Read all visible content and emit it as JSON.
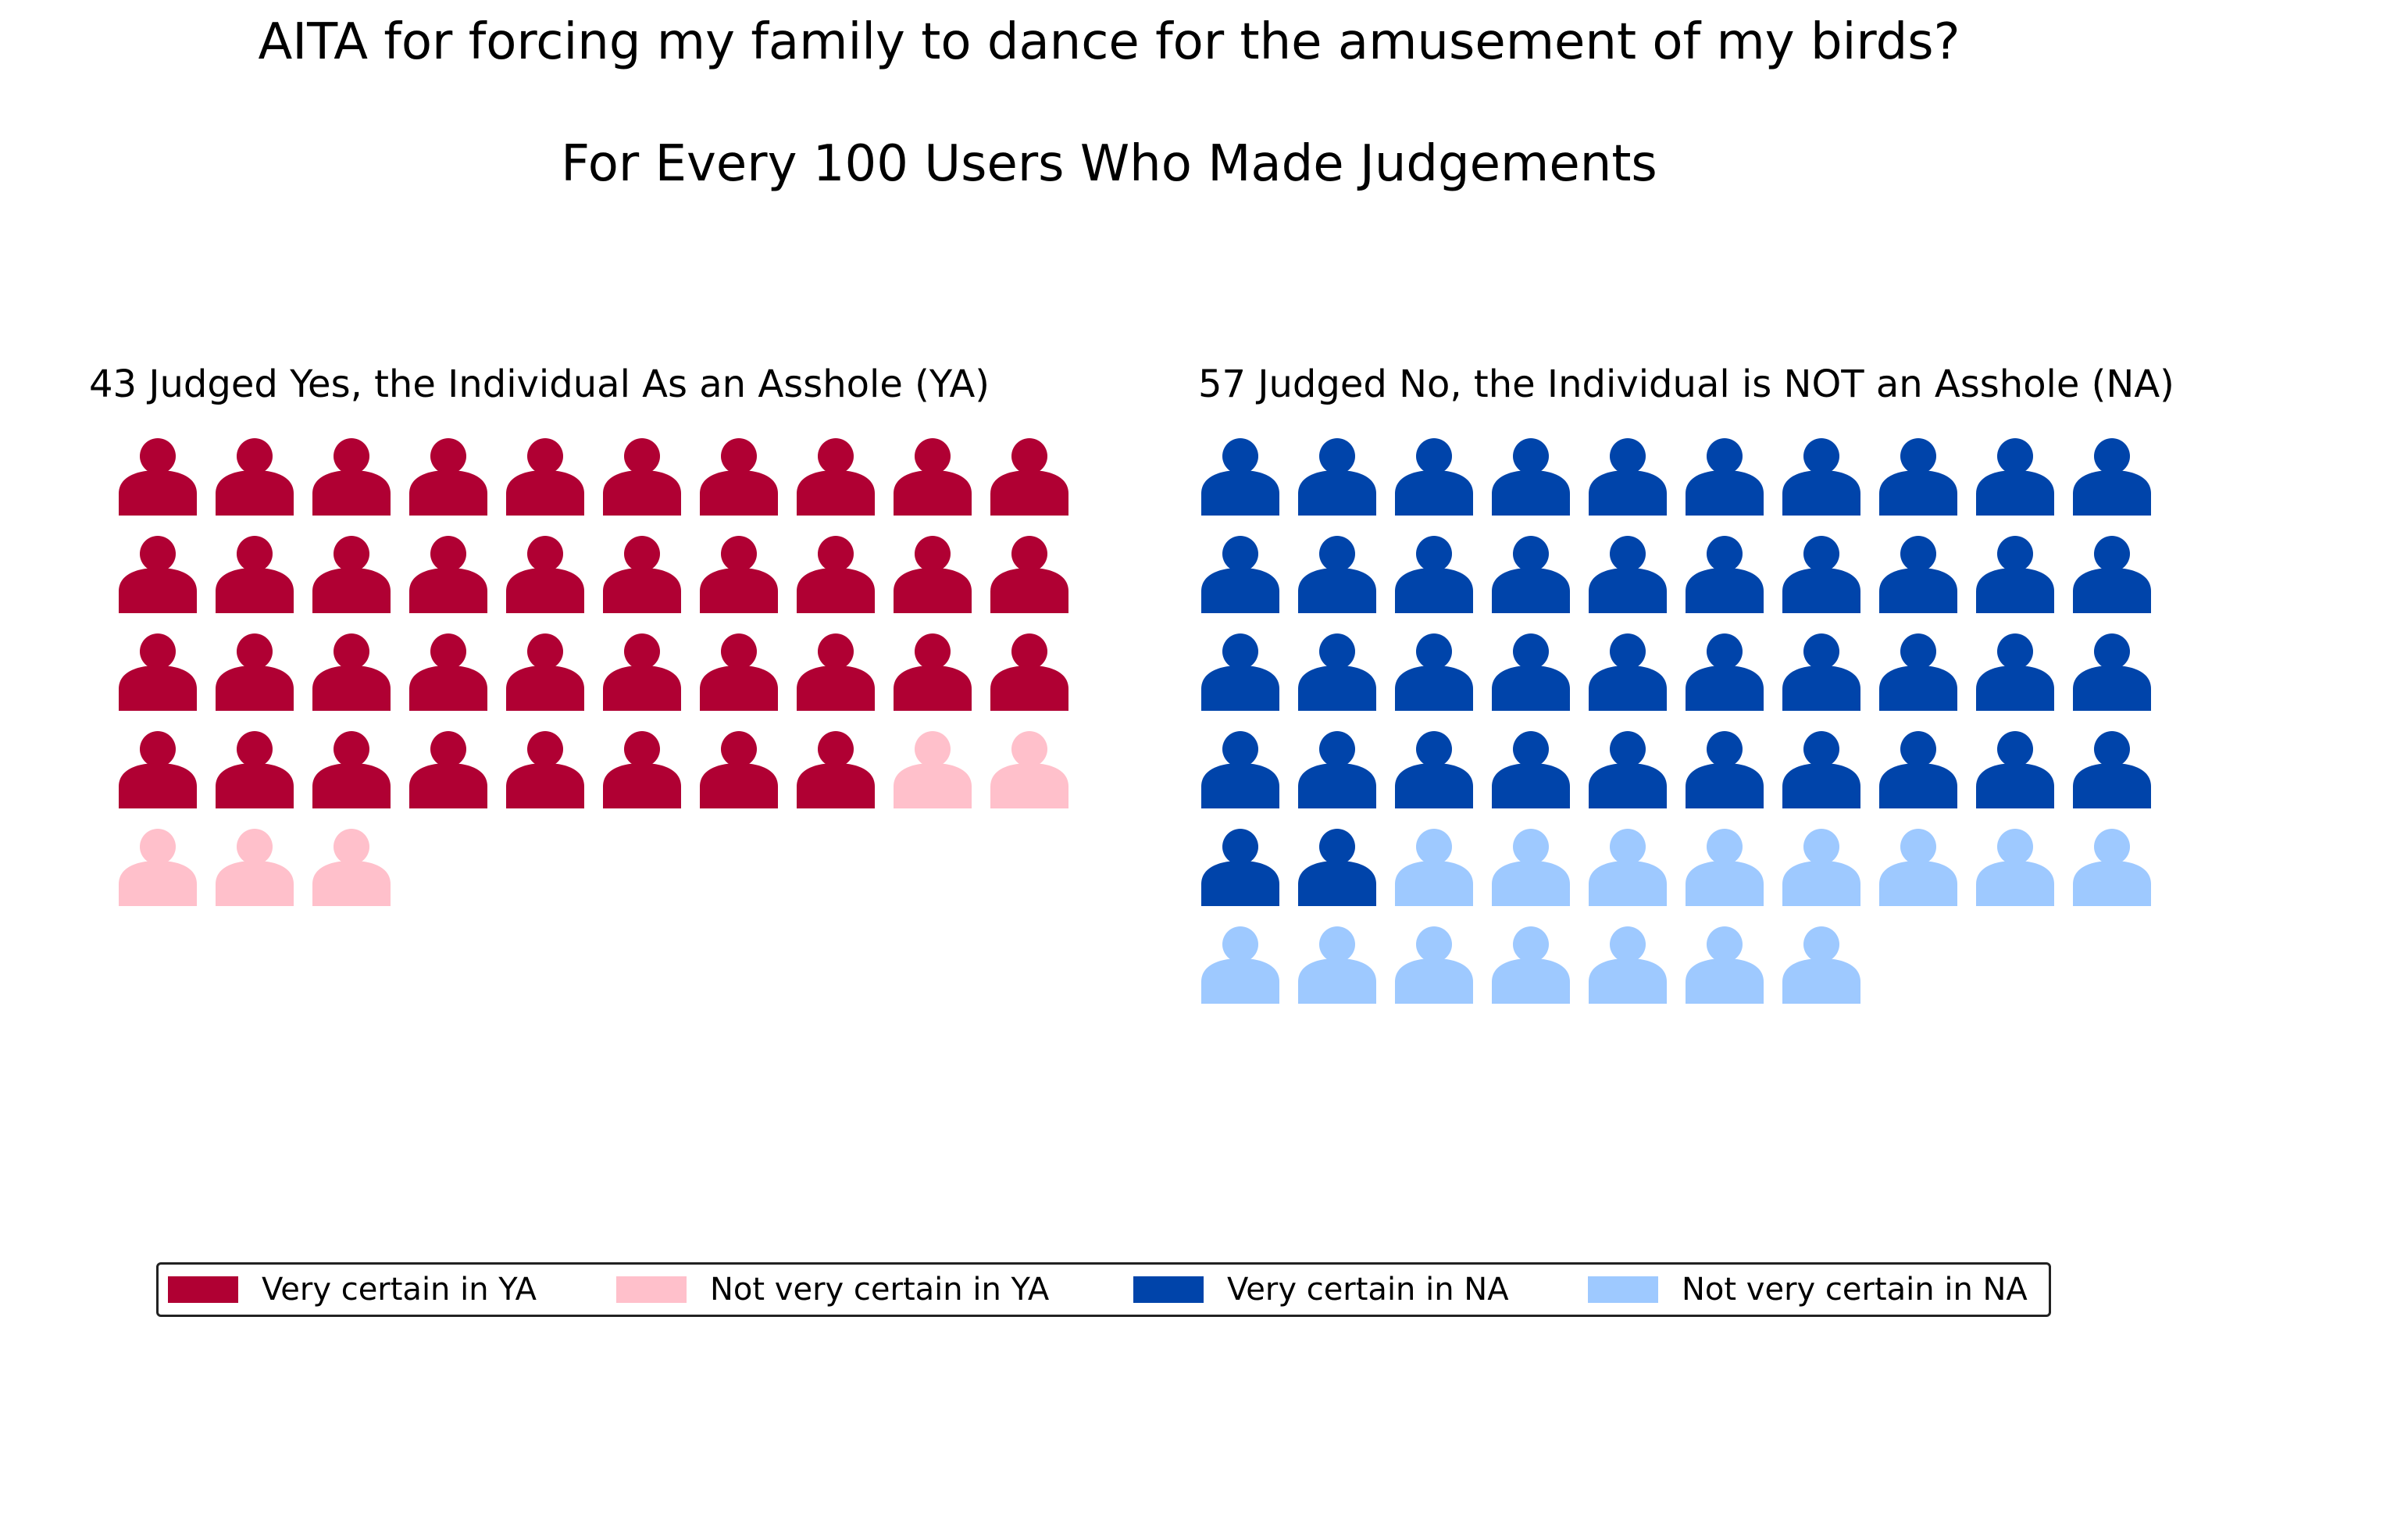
{
  "chart_data": {
    "type": "pictograph",
    "title": "AITA for forcing my family to dance for the amusement of my birds?",
    "subtitle": "For Every 100 Users Who Made Judgements",
    "icon": "person-icon",
    "per_row": 10,
    "panels": [
      {
        "id": "ya",
        "title": "43 Judged Yes, the Individual As an Asshole (YA)",
        "total": 43,
        "segments": [
          {
            "name": "Very certain in YA",
            "count": 38,
            "color": "#b00033"
          },
          {
            "name": "Not very certain in YA",
            "count": 5,
            "color": "#ffc0cb"
          }
        ]
      },
      {
        "id": "na",
        "title": "57 Judged No, the Individual is NOT an Asshole (NA)",
        "total": 57,
        "segments": [
          {
            "name": "Very certain in NA",
            "count": 42,
            "color": "#0044aa"
          },
          {
            "name": "Not very certain in NA",
            "count": 15,
            "color": "#9ec9ff"
          }
        ]
      }
    ],
    "legend": {
      "placement": "bottom",
      "items": [
        {
          "label": "Very certain in YA",
          "color": "#b00033"
        },
        {
          "label": "Not very certain in YA",
          "color": "#ffc0cb"
        },
        {
          "label": "Very certain in NA",
          "color": "#0044aa"
        },
        {
          "label": "Not very certain in NA",
          "color": "#9ec9ff"
        }
      ]
    }
  }
}
